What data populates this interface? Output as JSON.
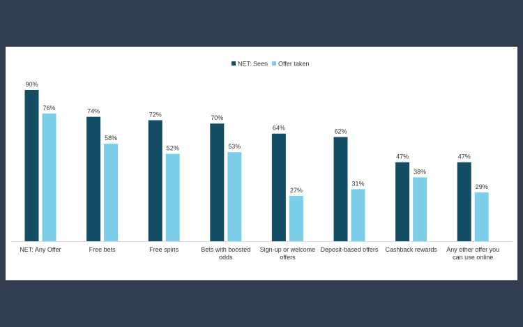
{
  "chart_data": {
    "type": "bar",
    "title": "",
    "xlabel": "",
    "ylabel": "",
    "ylim": [
      0,
      90
    ],
    "grid": false,
    "legend_position": "top-center",
    "value_suffix": "%",
    "categories": [
      [
        "NET: Any Offer"
      ],
      [
        "Free bets"
      ],
      [
        "Free spins"
      ],
      [
        "Bets with boosted",
        "odds"
      ],
      [
        "Sign-up or welcome",
        "offers"
      ],
      [
        "Deposit-based offers"
      ],
      [
        "Cashback rewards"
      ],
      [
        "Any other offer you",
        "can use online"
      ]
    ],
    "series": [
      {
        "name": "NET: Seen",
        "color": "#134e64",
        "values": [
          90,
          74,
          72,
          70,
          64,
          62,
          47,
          47
        ]
      },
      {
        "name": "Offer taken",
        "color": "#7dcfe9",
        "values": [
          76,
          58,
          52,
          53,
          27,
          31,
          38,
          29
        ]
      }
    ]
  }
}
